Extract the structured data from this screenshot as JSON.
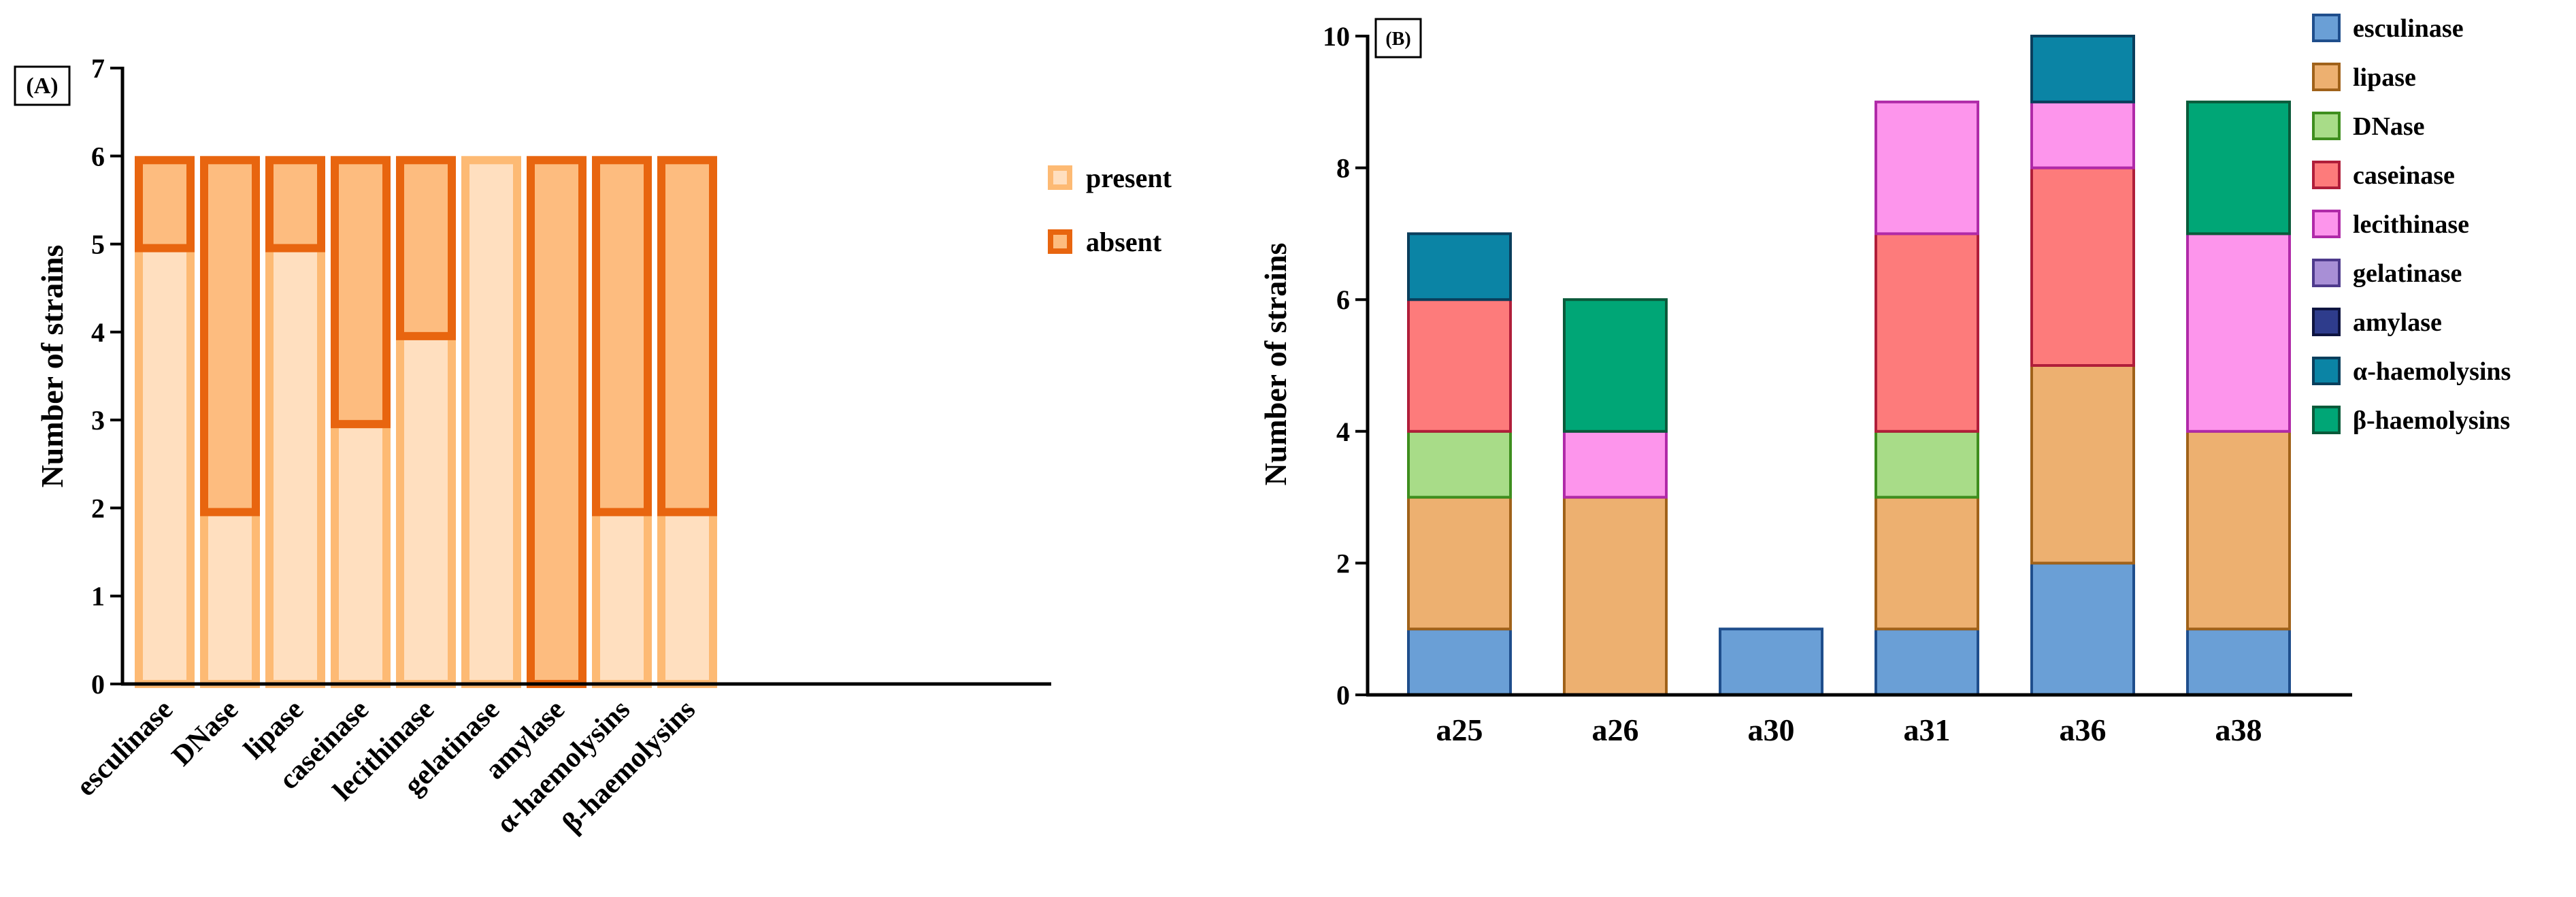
{
  "chart_data": [
    {
      "panel_label": "(A)",
      "type": "bar",
      "stacked": true,
      "title": "",
      "xlabel": "",
      "ylabel": "Number of strains",
      "ylim": [
        0,
        7
      ],
      "yticks": [
        "0",
        "1",
        "2",
        "3",
        "4",
        "5",
        "6",
        "7"
      ],
      "categories": [
        "esculinase",
        "DNase",
        "lipase",
        "caseinase",
        "lecithinase",
        "gelatinase",
        "amylase",
        "α-haemolysins",
        "β-haemolysins"
      ],
      "series": [
        {
          "name": "present",
          "color": "#FFDFBF",
          "edge": "#FDBA74",
          "values": [
            5,
            2,
            5,
            3,
            4,
            6,
            0,
            2,
            2
          ]
        },
        {
          "name": "absent",
          "color": "#FDBC7F",
          "edge": "#E8650F",
          "values": [
            1,
            4,
            1,
            3,
            2,
            0,
            6,
            4,
            4
          ]
        }
      ],
      "legend": {
        "position": "right",
        "items": [
          "present",
          "absent"
        ]
      },
      "grid": false
    },
    {
      "panel_label": "(B)",
      "type": "bar",
      "stacked": true,
      "title": "",
      "xlabel": "",
      "ylabel": "Number of strains",
      "ylim": [
        0,
        10
      ],
      "yticks": [
        "0",
        "2",
        "4",
        "6",
        "8",
        "10"
      ],
      "categories": [
        "a25",
        "a26",
        "a30",
        "a31",
        "a36",
        "a38"
      ],
      "series": [
        {
          "name": "esculinase",
          "color": "#6A9FD6",
          "edge": "#1F4E8C",
          "values": [
            1,
            0,
            1,
            1,
            2,
            1
          ]
        },
        {
          "name": "lipase",
          "color": "#EDB070",
          "edge": "#A0621A",
          "values": [
            2,
            3,
            0,
            2,
            3,
            3
          ]
        },
        {
          "name": "DNase",
          "color": "#A8DC88",
          "edge": "#3E8E1E",
          "values": [
            1,
            0,
            0,
            1,
            0,
            0
          ]
        },
        {
          "name": "caseinase",
          "color": "#FD7B7B",
          "edge": "#B01E3A",
          "values": [
            2,
            0,
            0,
            3,
            3,
            0
          ]
        },
        {
          "name": "lecithinase",
          "color": "#FD95EC",
          "edge": "#B02AA8",
          "values": [
            0,
            1,
            0,
            2,
            1,
            3
          ]
        },
        {
          "name": "gelatinase",
          "color": "#A88FD6",
          "edge": "#4E3A8C",
          "values": [
            0,
            0,
            0,
            0,
            0,
            0
          ]
        },
        {
          "name": "amylase",
          "color": "#2E3C8C",
          "edge": "#0E1440",
          "values": [
            0,
            0,
            0,
            0,
            0,
            0
          ]
        },
        {
          "name": "α-haemolysins",
          "color": "#0B84A5",
          "edge": "#0A3E5C",
          "values": [
            1,
            0,
            0,
            0,
            1,
            0
          ]
        },
        {
          "name": "β-haemolysins",
          "color": "#00A676",
          "edge": "#0A5A3A",
          "values": [
            0,
            2,
            0,
            0,
            0,
            2
          ]
        }
      ],
      "legend": {
        "position": "top-right",
        "items": [
          "esculinase",
          "lipase",
          "DNase",
          "caseinase",
          "lecithinase",
          "gelatinase",
          "amylase",
          "α-haemolysins",
          "β-haemolysins"
        ]
      },
      "grid": false
    }
  ]
}
